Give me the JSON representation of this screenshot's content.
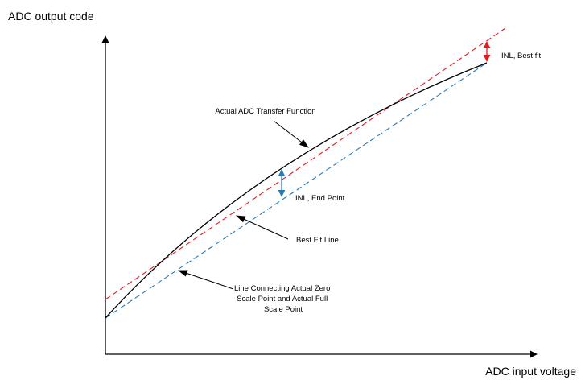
{
  "axes": {
    "y_title": "ADC output code",
    "x_title": "ADC input voltage"
  },
  "labels": {
    "transfer_function": "Actual ADC Transfer Function",
    "inl_best_fit": "INL, Best fit",
    "inl_end_point": "INL, End Point",
    "best_fit_line": "Best Fit Line",
    "endpoint_line": [
      "Line Connecting Actual Zero",
      "Scale Point and Actual Full",
      "Scale Point"
    ]
  },
  "colors": {
    "axes": "#000000",
    "transfer_curve": "#000000",
    "best_fit_line": "#e8191d",
    "endpoint_line": "#2a7ab8",
    "inl_best_fit_marker": "#e8191d",
    "inl_end_point_marker": "#2a7ab8"
  },
  "line_styles": {
    "transfer_curve": "solid",
    "best_fit_line": "dashed",
    "endpoint_line": "dashed"
  }
}
